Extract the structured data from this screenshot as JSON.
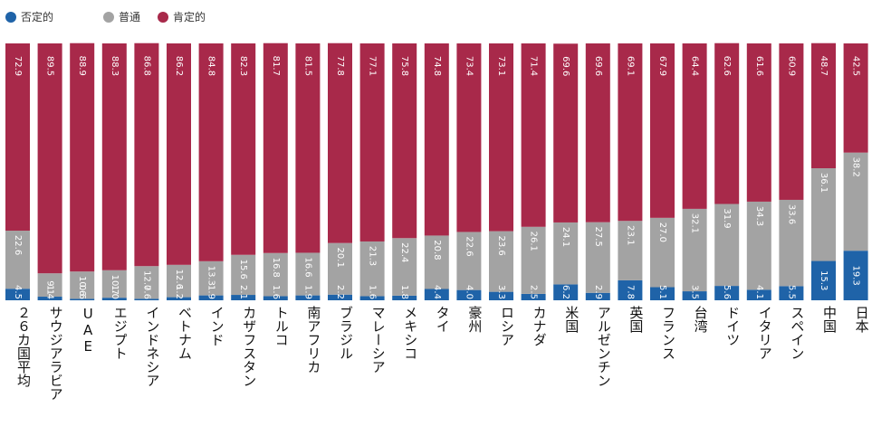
{
  "chart_data": {
    "type": "bar",
    "stacked": true,
    "percent": true,
    "categories": [
      "２６カ国平均",
      "サウジアラビア",
      "UAE",
      "エジプト",
      "インドネシア",
      "ベトナム",
      "インド",
      "カザフスタン",
      "トルコ",
      "南アフリカ",
      "ブラジル",
      "マレーシア",
      "メキシコ",
      "タイ",
      "豪州",
      "ロシア",
      "カナダ",
      "米国",
      "アルゼンチン",
      "英国",
      "フランス",
      "台湾",
      "ドイツ",
      "イタリア",
      "スペイン",
      "中国",
      "日本"
    ],
    "series": [
      {
        "name": "否定的",
        "color": "#1f63a8",
        "values": [
          4.5,
          1.4,
          0.6,
          1.0,
          0.6,
          1.2,
          1.9,
          2.1,
          1.6,
          1.9,
          2.2,
          1.6,
          1.8,
          4.4,
          4.0,
          3.3,
          2.5,
          6.2,
          2.9,
          7.8,
          5.1,
          3.5,
          5.6,
          4.1,
          5.5,
          15.3,
          19.3
        ],
        "labels": [
          "4.5",
          "1.4",
          "0.6",
          "1.0",
          "0.6",
          "1.2",
          "1.9",
          "2.1",
          "1.6",
          "1.9",
          "2.2",
          "1.6",
          "1.8",
          "4.4",
          "4.0",
          "3.3",
          "2.5",
          "6.2",
          "2.9",
          "7.8",
          "5.1",
          "3.5",
          "5.6",
          "4.1",
          "5.5",
          "15.3",
          "19.3"
        ]
      },
      {
        "name": "普通",
        "color": "#a3a3a3",
        "values": [
          22.6,
          9.1,
          10.6,
          10.7,
          12.7,
          12.6,
          13.3,
          15.6,
          16.8,
          16.6,
          20.1,
          21.3,
          22.4,
          20.8,
          22.6,
          23.6,
          26.1,
          24.1,
          27.5,
          23.1,
          27.0,
          32.1,
          31.9,
          34.3,
          33.6,
          36.1,
          38.2
        ],
        "labels": [
          "22.6",
          "9.1",
          "10.6",
          "10.7",
          "12.7",
          "12.6",
          "13.3",
          "15.6",
          "16.8",
          "16.6",
          "20.1",
          "21.3",
          "22.4",
          "20.8",
          "22.6",
          "23.6",
          "26.1",
          "24.1",
          "27.5",
          "23.1",
          "27.0",
          "32.1",
          "31.9",
          "34.3",
          "33.6",
          "36.1",
          "38.2"
        ]
      },
      {
        "name": "肯定的",
        "color": "#a8294a",
        "values": [
          72.9,
          89.5,
          88.9,
          88.3,
          86.8,
          86.2,
          84.8,
          82.3,
          81.7,
          81.5,
          77.8,
          77.1,
          75.8,
          74.8,
          73.4,
          73.1,
          71.4,
          69.6,
          69.6,
          69.1,
          67.9,
          64.4,
          62.6,
          61.6,
          60.9,
          48.7,
          42.5
        ],
        "labels": [
          "72.9",
          "89.5",
          "88.9",
          "88.3",
          "86.8",
          "86.2",
          "84.8",
          "82.3",
          "81.7",
          "81.5",
          "77.8",
          "77.1",
          "75.8",
          "74.8",
          "73.4",
          "73.1",
          "71.4",
          "69.6",
          "69.6",
          "69.1",
          "67.9",
          "64.4",
          "62.6",
          "61.6",
          "60.9",
          "48.7",
          "42.5"
        ]
      }
    ],
    "legend": [
      "否定的",
      "普通",
      "肯定的"
    ],
    "legend_position": "top-left",
    "ylim": [
      0,
      100
    ],
    "title": "",
    "xlabel": "",
    "ylabel": ""
  }
}
